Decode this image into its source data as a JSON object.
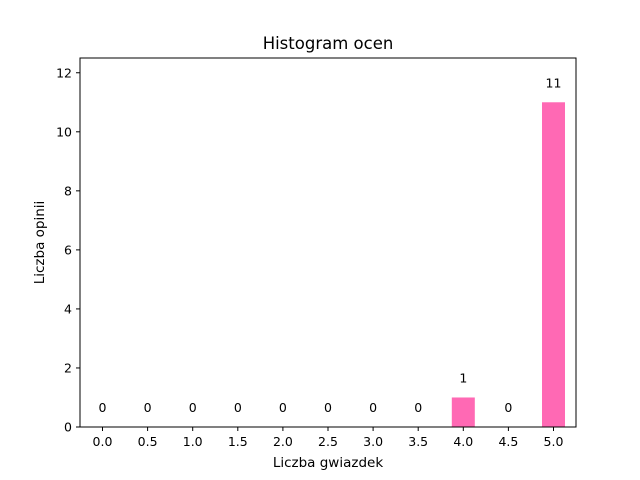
{
  "chart_data": {
    "type": "bar",
    "title": "Histogram ocen",
    "xlabel": "Liczba gwiazdek",
    "ylabel": "Liczba opinii",
    "categories": [
      "0.0",
      "0.5",
      "1.0",
      "1.5",
      "2.0",
      "2.5",
      "3.0",
      "3.5",
      "4.0",
      "4.5",
      "5.0"
    ],
    "values": [
      0,
      0,
      0,
      0,
      0,
      0,
      0,
      0,
      1,
      0,
      11
    ],
    "data_labels": [
      "0",
      "0",
      "0",
      "0",
      "0",
      "0",
      "0",
      "0",
      "1",
      "0",
      "11"
    ],
    "yticks": [
      0,
      2,
      4,
      6,
      8,
      10,
      12
    ],
    "ylim": [
      0,
      12.5
    ],
    "bar_color": "#ff69b4",
    "grid": false,
    "legend": false
  }
}
